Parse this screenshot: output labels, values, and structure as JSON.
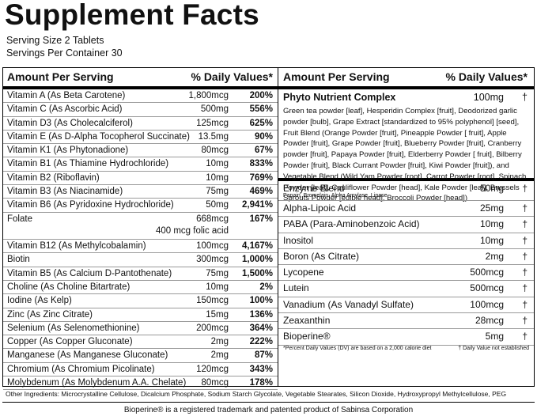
{
  "title": "Supplement Facts",
  "serving": [
    "Serving Size 2 Tablets",
    "Servings Per Container 30"
  ],
  "left": {
    "header": [
      "Amount Per Serving",
      "% Daily Values*"
    ],
    "rows": [
      {
        "name": "Vitamin A (As Beta Carotene)",
        "amount": "1,800mcg",
        "dv": "200%"
      },
      {
        "name": "Vitamin C (As Ascorbic Acid)",
        "amount": "500mg",
        "dv": "556%"
      },
      {
        "name": "Vitamin D3 (As Cholecalciferol)",
        "amount": "125mcg",
        "dv": "625%"
      },
      {
        "name": "Vitamin E (As D-Alpha Tocopherol Succinate)",
        "amount": "13.5mg",
        "dv": "90%"
      },
      {
        "name": "Vitamin K1 (As Phytonadione)",
        "amount": "80mcg",
        "dv": "67%"
      },
      {
        "name": "Vitamin B1 (As Thiamine Hydrochloride)",
        "amount": "10mg",
        "dv": "833%"
      },
      {
        "name": "Vitamin B2 (Riboflavin)",
        "amount": "10mg",
        "dv": "769%"
      },
      {
        "name": "Vitamin B3 (As Niacinamide)",
        "amount": "75mg",
        "dv": "469%"
      },
      {
        "name": "Vitamin B6 (As Pyridoxine Hydrochloride)",
        "amount": "50mg",
        "dv": "2,941%"
      },
      {
        "name": "Folate",
        "amount": "668mcg",
        "sub": "400 mcg folic acid",
        "dv": "167%"
      },
      {
        "name": "Vitamin B12 (As Methylcobalamin)",
        "amount": "100mcg",
        "dv": "4,167%"
      },
      {
        "name": "Biotin",
        "amount": "300mcg",
        "dv": "1,000%"
      },
      {
        "name": "Vitamin B5 (As Calcium D-Pantothenate)",
        "amount": "75mg",
        "dv": "1,500%"
      },
      {
        "name": "Choline (As Choline Bitartrate)",
        "amount": "10mg",
        "dv": "2%"
      },
      {
        "name": "Iodine (As Kelp)",
        "amount": "150mcg",
        "dv": "100%"
      },
      {
        "name": "Zinc (As Zinc Citrate)",
        "amount": "15mg",
        "dv": "136%"
      },
      {
        "name": "Selenium (As Selenomethionine)",
        "amount": "200mcg",
        "dv": "364%"
      },
      {
        "name": "Copper (As Copper Gluconate)",
        "amount": "2mg",
        "dv": "222%"
      },
      {
        "name": "Manganese (As Manganese Gluconate)",
        "amount": "2mg",
        "dv": "87%"
      },
      {
        "name": "Chromium (As Chromium Picolinate)",
        "amount": "120mcg",
        "dv": "343%"
      },
      {
        "name": "Molybdenum (As Molybdenum A.A. Chelate)",
        "amount": "80mcg",
        "dv": "178%"
      }
    ]
  },
  "right": {
    "header": [
      "Amount Per Serving",
      "% Daily Values*"
    ],
    "phyto": {
      "name": "Phyto Nutrient Complex",
      "amount": "100mg",
      "mark": "†",
      "description": "Green tea powder [leaf], Hesperidin Complex [fruit], Deodorized garlic powder [bulb], Grape Extract [standardized to 95% polyphenol] [seed], Fruit Blend (Orange Powder [fruit], Pineapple Powder [ fruit], Apple Powder [fruit], Grape Powder [fruit], Blueberry Powder [fruit], Cranberry powder [fruit], Papaya Powder [fruit], Elderberry Powder [ fruit], Bilberry Powder [fruit], Black Currant Powder [fruit], Kiwi Powder [fruit]), and Vegetable Blend (Wild Yam Powder [root], Carrot Powder [root], Spinach Powder [leaf], Cauliflower Powder [head], Kale Powder [leaf], Brussels Sprouts Powder [edible head], Broccoli Powder [head])"
    },
    "rows": [
      {
        "name": "Enzyme Blend",
        "sub": "Papain, Bromelain, Alpha Amylase, Lipase",
        "amount": "50mg",
        "mark": "†"
      },
      {
        "name": "Alpha-Lipoic Acid",
        "amount": "25mg",
        "mark": "†"
      },
      {
        "name": "PABA (Para-Aminobenzoic Acid)",
        "amount": "10mg",
        "mark": "†"
      },
      {
        "name": "Inositol",
        "amount": "10mg",
        "mark": "†"
      },
      {
        "name": "Boron (As Citrate)",
        "amount": "2mg",
        "mark": "†"
      },
      {
        "name": "Lycopene",
        "amount": "500mcg",
        "mark": "†"
      },
      {
        "name": "Lutein",
        "amount": "500mcg",
        "mark": "†"
      },
      {
        "name": "Vanadium (As Vanadyl Sulfate)",
        "amount": "100mcg",
        "mark": "†"
      },
      {
        "name": "Zeaxanthin",
        "amount": "28mcg",
        "mark": "†"
      },
      {
        "name": "Bioperine®",
        "amount": "5mg",
        "mark": "†"
      }
    ],
    "footnotes": [
      "*Percent Daily Values (DV) are based on a 2,000 calorie diet",
      "† Daily Value not established"
    ]
  },
  "other_ingredients": "Other Ingredients: Microcrystalline Cellulose, Dicalcium Phosphate, Sodium Starch Glycolate, Vegetable Stearates, Silicon Dioxide, Hydroxypropyl Methylcellulose, PEG",
  "trademark_note": "Bioperine® is a registered trademark and patented product of Sabinsa Corporation"
}
